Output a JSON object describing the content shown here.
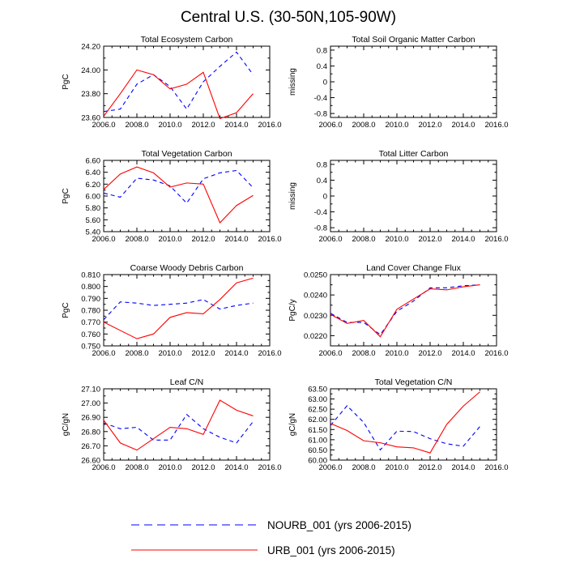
{
  "figure": {
    "title": "Central U.S. (30-50N,105-90W)",
    "legend": [
      {
        "label": "NOURB_001 (yrs 2006-2015)",
        "color": "#0000ff",
        "dash": "dashed"
      },
      {
        "label": "URB_001 (yrs 2006-2015)",
        "color": "#ff0000",
        "dash": "solid"
      }
    ]
  },
  "chart_data": [
    {
      "type": "line",
      "title": "Total Ecosystem Carbon",
      "ylabel": "PgC",
      "xlim": [
        2006,
        2016
      ],
      "ylim": [
        23.6,
        24.2
      ],
      "xticks": [
        2006,
        2008,
        2010,
        2012,
        2014,
        2016
      ],
      "xtick_labels": [
        "2006.0",
        "2008.0",
        "2010.0",
        "2012.0",
        "2014.0",
        "2016.0"
      ],
      "yticks": [
        23.6,
        23.8,
        24.0,
        24.2
      ],
      "ytick_labels": [
        "23.60",
        "23.80",
        "24.00",
        "24.20"
      ],
      "x": [
        2006,
        2007,
        2008,
        2009,
        2010,
        2011,
        2012,
        2013,
        2014,
        2015
      ],
      "series": [
        {
          "name": "NOURB_001",
          "values": [
            23.65,
            23.67,
            23.88,
            23.96,
            23.86,
            23.67,
            23.9,
            24.03,
            24.15,
            23.96
          ]
        },
        {
          "name": "URB_001",
          "values": [
            23.61,
            23.8,
            24.0,
            23.96,
            23.84,
            23.88,
            23.98,
            23.59,
            23.64,
            23.8
          ]
        }
      ]
    },
    {
      "type": "line",
      "title": "Total Soil Organic Matter Carbon",
      "ylabel": "missing",
      "xlim": [
        2006,
        2016
      ],
      "ylim": [
        -0.9,
        0.9
      ],
      "xticks": [
        2006,
        2008,
        2010,
        2012,
        2014,
        2016
      ],
      "xtick_labels": [
        "2006.0",
        "2008.0",
        "2010.0",
        "2012.0",
        "2014.0",
        "2016.0"
      ],
      "yticks": [
        -0.8,
        -0.4,
        0,
        0.4,
        0.8
      ],
      "ytick_labels": [
        "-0.8",
        "-0.4",
        "0",
        "0.4",
        "0.8"
      ],
      "minor_yticks": [
        -0.6,
        -0.2,
        0.2,
        0.6
      ],
      "x": [],
      "series": []
    },
    {
      "type": "line",
      "title": "Total Vegetation Carbon",
      "ylabel": "PgC",
      "xlim": [
        2006,
        2016
      ],
      "ylim": [
        5.4,
        6.6
      ],
      "xticks": [
        2006,
        2008,
        2010,
        2012,
        2014,
        2016
      ],
      "xtick_labels": [
        "2006.0",
        "2008.0",
        "2010.0",
        "2012.0",
        "2014.0",
        "2016.0"
      ],
      "yticks": [
        5.4,
        5.6,
        5.8,
        6.0,
        6.2,
        6.4,
        6.6
      ],
      "ytick_labels": [
        "5.40",
        "5.60",
        "5.80",
        "6.00",
        "6.20",
        "6.40",
        "6.60"
      ],
      "x": [
        2006,
        2007,
        2008,
        2009,
        2010,
        2011,
        2012,
        2013,
        2014,
        2015
      ],
      "series": [
        {
          "name": "NOURB_001",
          "values": [
            6.05,
            5.98,
            6.3,
            6.27,
            6.17,
            5.88,
            6.29,
            6.39,
            6.43,
            6.14
          ]
        },
        {
          "name": "URB_001",
          "values": [
            6.11,
            6.37,
            6.49,
            6.39,
            6.15,
            6.22,
            6.2,
            5.55,
            5.84,
            6.01
          ]
        }
      ]
    },
    {
      "type": "line",
      "title": "Total Litter Carbon",
      "ylabel": "missing",
      "xlim": [
        2006,
        2016
      ],
      "ylim": [
        -0.9,
        0.9
      ],
      "xticks": [
        2006,
        2008,
        2010,
        2012,
        2014,
        2016
      ],
      "xtick_labels": [
        "2006.0",
        "2008.0",
        "2010.0",
        "2012.0",
        "2014.0",
        "2016.0"
      ],
      "yticks": [
        -0.8,
        -0.4,
        0,
        0.4,
        0.8
      ],
      "ytick_labels": [
        "-0.8",
        "-0.4",
        "0",
        "0.4",
        "0.8"
      ],
      "minor_yticks": [
        -0.6,
        -0.2,
        0.2,
        0.6
      ],
      "x": [],
      "series": []
    },
    {
      "type": "line",
      "title": "Coarse Woody Debris Carbon",
      "ylabel": "PgC",
      "xlim": [
        2006,
        2016
      ],
      "ylim": [
        0.75,
        0.81
      ],
      "xticks": [
        2006,
        2008,
        2010,
        2012,
        2014,
        2016
      ],
      "xtick_labels": [
        "2006.0",
        "2008.0",
        "2010.0",
        "2012.0",
        "2014.0",
        "2016.0"
      ],
      "yticks": [
        0.75,
        0.76,
        0.77,
        0.78,
        0.79,
        0.8,
        0.81
      ],
      "ytick_labels": [
        "0.750",
        "0.760",
        "0.770",
        "0.780",
        "0.790",
        "0.800",
        "0.810"
      ],
      "x": [
        2006,
        2007,
        2008,
        2009,
        2010,
        2011,
        2012,
        2013,
        2014,
        2015
      ],
      "series": [
        {
          "name": "NOURB_001",
          "values": [
            0.772,
            0.787,
            0.786,
            0.784,
            0.785,
            0.786,
            0.789,
            0.781,
            0.784,
            0.786
          ]
        },
        {
          "name": "URB_001",
          "values": [
            0.77,
            0.763,
            0.756,
            0.76,
            0.774,
            0.778,
            0.777,
            0.789,
            0.803,
            0.807
          ]
        }
      ]
    },
    {
      "type": "line",
      "title": "Land Cover Change Flux",
      "ylabel": "PgC/y",
      "xlim": [
        2006,
        2016
      ],
      "ylim": [
        0.0215,
        0.025
      ],
      "xticks": [
        2006,
        2008,
        2010,
        2012,
        2014,
        2016
      ],
      "xtick_labels": [
        "2006.0",
        "2008.0",
        "2010.0",
        "2012.0",
        "2014.0",
        "2016.0"
      ],
      "yticks": [
        0.022,
        0.023,
        0.024,
        0.025
      ],
      "ytick_labels": [
        "0.0220",
        "0.0230",
        "0.0240",
        "0.0250"
      ],
      "x": [
        2006,
        2007,
        2008,
        2009,
        2010,
        2011,
        2012,
        2013,
        2014,
        2015
      ],
      "series": [
        {
          "name": "NOURB_001",
          "values": [
            0.0231,
            0.02265,
            0.02265,
            0.02205,
            0.0232,
            0.0237,
            0.02435,
            0.02435,
            0.02445,
            0.0245
          ]
        },
        {
          "name": "URB_001",
          "values": [
            0.02305,
            0.0226,
            0.02275,
            0.02195,
            0.0233,
            0.0238,
            0.0243,
            0.02425,
            0.0244,
            0.0245
          ]
        }
      ]
    },
    {
      "type": "line",
      "title": "Leaf C/N",
      "ylabel": "gC/gN",
      "xlim": [
        2006,
        2016
      ],
      "ylim": [
        26.6,
        27.1
      ],
      "xticks": [
        2006,
        2008,
        2010,
        2012,
        2014,
        2016
      ],
      "xtick_labels": [
        "2006.0",
        "2008.0",
        "2010.0",
        "2012.0",
        "2014.0",
        "2016.0"
      ],
      "yticks": [
        26.6,
        26.7,
        26.8,
        26.9,
        27.0,
        27.1
      ],
      "ytick_labels": [
        "26.60",
        "26.70",
        "26.80",
        "26.90",
        "27.00",
        "27.10"
      ],
      "x": [
        2006,
        2007,
        2008,
        2009,
        2010,
        2011,
        2012,
        2013,
        2014,
        2015
      ],
      "series": [
        {
          "name": "NOURB_001",
          "values": [
            26.86,
            26.82,
            26.83,
            26.74,
            26.74,
            26.92,
            26.82,
            26.76,
            26.72,
            26.87
          ]
        },
        {
          "name": "URB_001",
          "values": [
            26.88,
            26.72,
            26.67,
            26.75,
            26.83,
            26.82,
            26.78,
            27.02,
            26.95,
            26.91
          ]
        }
      ]
    },
    {
      "type": "line",
      "title": "Total Vegetation C/N",
      "ylabel": "gC/gN",
      "xlim": [
        2006,
        2016
      ],
      "ylim": [
        60.0,
        63.5
      ],
      "xticks": [
        2006,
        2008,
        2010,
        2012,
        2014,
        2016
      ],
      "xtick_labels": [
        "2006.0",
        "2008.0",
        "2010.0",
        "2012.0",
        "2014.0",
        "2016.0"
      ],
      "yticks": [
        60.0,
        60.5,
        61.0,
        61.5,
        62.0,
        62.5,
        63.0,
        63.5
      ],
      "ytick_labels": [
        "60.00",
        "60.50",
        "61.00",
        "61.50",
        "62.00",
        "62.50",
        "63.00",
        "63.50"
      ],
      "x": [
        2006,
        2007,
        2008,
        2009,
        2010,
        2011,
        2012,
        2013,
        2014,
        2015
      ],
      "series": [
        {
          "name": "NOURB_001",
          "values": [
            61.7,
            62.67,
            61.85,
            60.5,
            61.42,
            61.4,
            61.05,
            60.8,
            60.68,
            61.65
          ]
        },
        {
          "name": "URB_001",
          "values": [
            61.8,
            61.45,
            60.95,
            60.85,
            60.65,
            60.6,
            60.35,
            61.75,
            62.65,
            63.35
          ]
        }
      ]
    }
  ]
}
